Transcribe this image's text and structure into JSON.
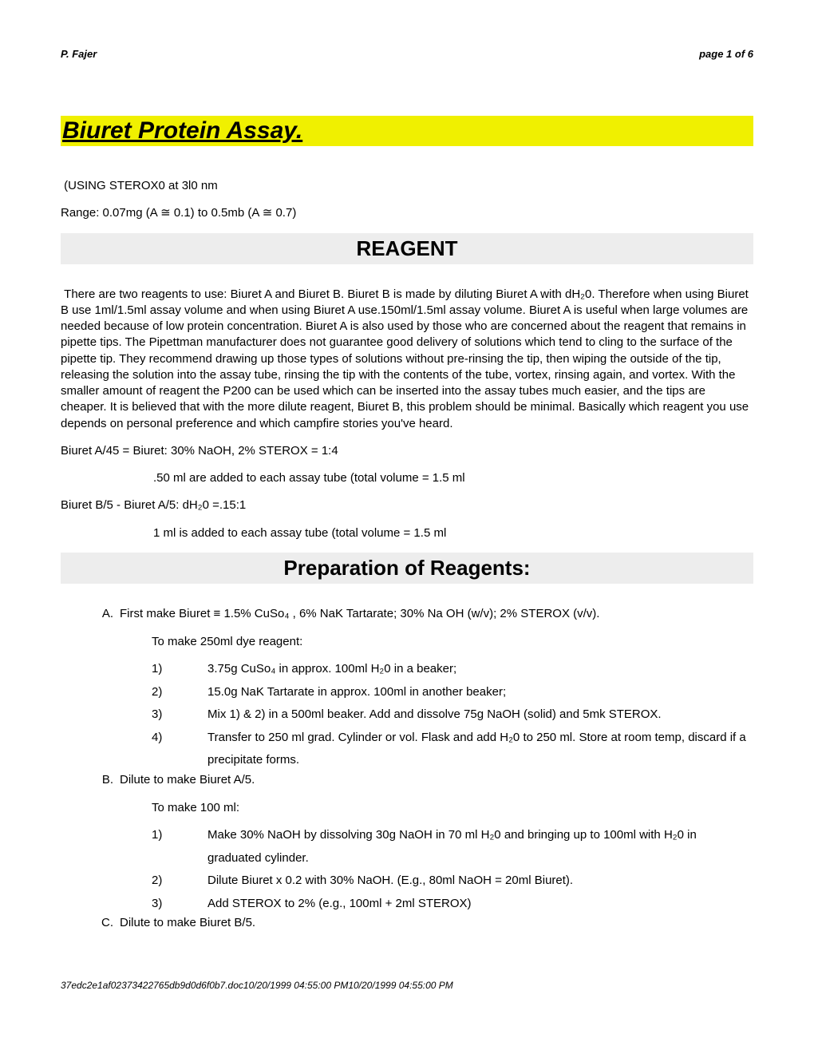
{
  "header": {
    "left": "P. Fajer",
    "right": "page 1 of 6"
  },
  "title": "Biuret Protein Assay.",
  "intro1": "(USING STEROX0 at 3l0 nm",
  "intro2_pre": "Range: 0.07mg (A ",
  "intro2_mid": " 0.1) to 0.5mb (A ",
  "intro2_post": " 0.7)",
  "cong": "≅",
  "section1": "REAGENT",
  "reagent_para": "There are two reagents to use: Biuret A and Biuret B.  Biuret B is made by diluting Biuret A with dH₂0.  Therefore when using Biuret B use 1ml/1.5ml assay volume and when using Biuret A use.150ml/1.5ml assay volume.  Biuret A is useful when large volumes are needed because of low protein concentration.  Biuret A is also used by those who are concerned about the reagent that remains in pipette tips.  The Pipettman manufacturer does not guarantee good delivery of solutions which tend to cling to the surface of the pipette tip.  They recommend drawing up those types of solutions without pre-rinsing the tip, then wiping the outside of the tip, releasing the solution into the assay tube, rinsing the tip with the contents of the tube, vortex, rinsing again, and vortex.  With the smaller amount of reagent the P200 can be used which can be inserted into the assay tubes much easier, and the tips are cheaper.  It is believed that with the more dilute reagent, Biuret B, this problem should be minimal.  Basically which reagent you use depends on personal preference and which campfire stories you've heard.",
  "line_a45": "Biuret A/45 = Biuret: 30% NaOH, 2% STEROX = 1:4",
  "line_a45_sub": ".50 ml are added to each assay tube (total volume = 1.5 ml",
  "line_b5": "Biuret B/5 - Biuret A/5: dH₂0 =.15:1",
  "line_b5_sub": "1 ml is added to each assay tube (total volume = 1.5 ml",
  "section2": "Preparation of Reagents:",
  "A": {
    "label": "A.",
    "text": "First make Biuret ≡ 1.5% CuSo₄ , 6% NaK Tartarate; 30% Na OH (w/v); 2% STEROX (v/v).",
    "sub": "To make 250ml dye reagent:",
    "items": [
      {
        "n": "1)",
        "t": "3.75g CuSo₄ in approx.  100ml H₂0 in a beaker;"
      },
      {
        "n": "2)",
        "t": "15.0g NaK Tartarate in approx.  100ml in another beaker;"
      },
      {
        "n": "3)",
        "t": "Mix 1) & 2) in a 500ml beaker.  Add and dissolve 75g NaOH (solid) and 5mk STEROX."
      },
      {
        "n": "4)",
        "t": "Transfer to 250 ml grad.  Cylinder or vol.  Flask and add H₂0 to 250 ml.  Store at room temp, discard if a precipitate forms."
      }
    ]
  },
  "B": {
    "label": "B.",
    "text": "Dilute to make Biuret A/5.",
    "sub": "To make 100 ml:",
    "items": [
      {
        "n": "1)",
        "t": "Make 30% NaOH by dissolving 30g NaOH in 70 ml H₂0 and bringing up to 100ml with H₂0 in graduated cylinder."
      },
      {
        "n": "2)",
        "t": "Dilute Biuret x 0.2 with 30% NaOH.  (E.g., 80ml NaOH = 20ml Biuret)."
      },
      {
        "n": "3)",
        "t": "Add STEROX to 2% (e.g., 100ml + 2ml STEROX)"
      }
    ]
  },
  "C": {
    "label": "C.",
    "text": "Dilute to make Biuret B/5."
  },
  "footer": "37edc2e1af02373422765db9d0d6f0b7.doc10/20/1999 04:55:00 PM10/20/1999 04:55:00 PM"
}
